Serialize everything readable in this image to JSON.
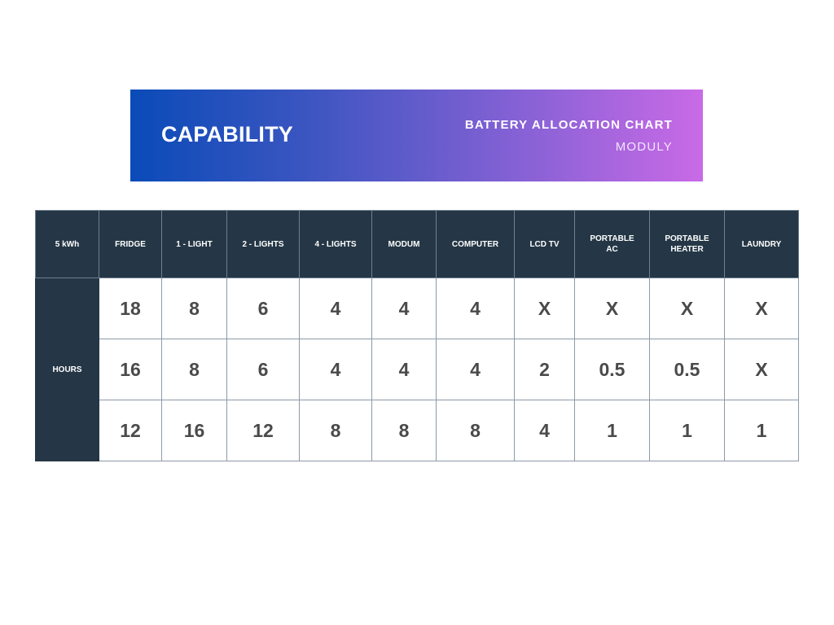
{
  "header": {
    "title": "CAPABILITY",
    "subtitle": "BATTERY ALLOCATION CHART",
    "brand": "MODULY"
  },
  "table": {
    "corner": "5 kWh",
    "columns": [
      "FRIDGE",
      "1 - LIGHT",
      "2 - LIGHTS",
      "4 - LIGHTS",
      "MODUM",
      "COMPUTER",
      "LCD TV",
      "PORTABLE AC",
      "PORTABLE HEATER",
      "LAUNDRY"
    ],
    "row_label": "HOURS",
    "rows": [
      [
        "18",
        "8",
        "6",
        "4",
        "4",
        "4",
        "X",
        "X",
        "X",
        "X"
      ],
      [
        "16",
        "8",
        "6",
        "4",
        "4",
        "4",
        "2",
        "0.5",
        "0.5",
        "X"
      ],
      [
        "12",
        "16",
        "12",
        "8",
        "8",
        "8",
        "4",
        "1",
        "1",
        "1"
      ]
    ]
  },
  "colors": {
    "gradient_start": "#0a4bb8",
    "gradient_end": "#c96ae6",
    "header_dark": "#253746",
    "value_text": "#4a4a4a"
  }
}
